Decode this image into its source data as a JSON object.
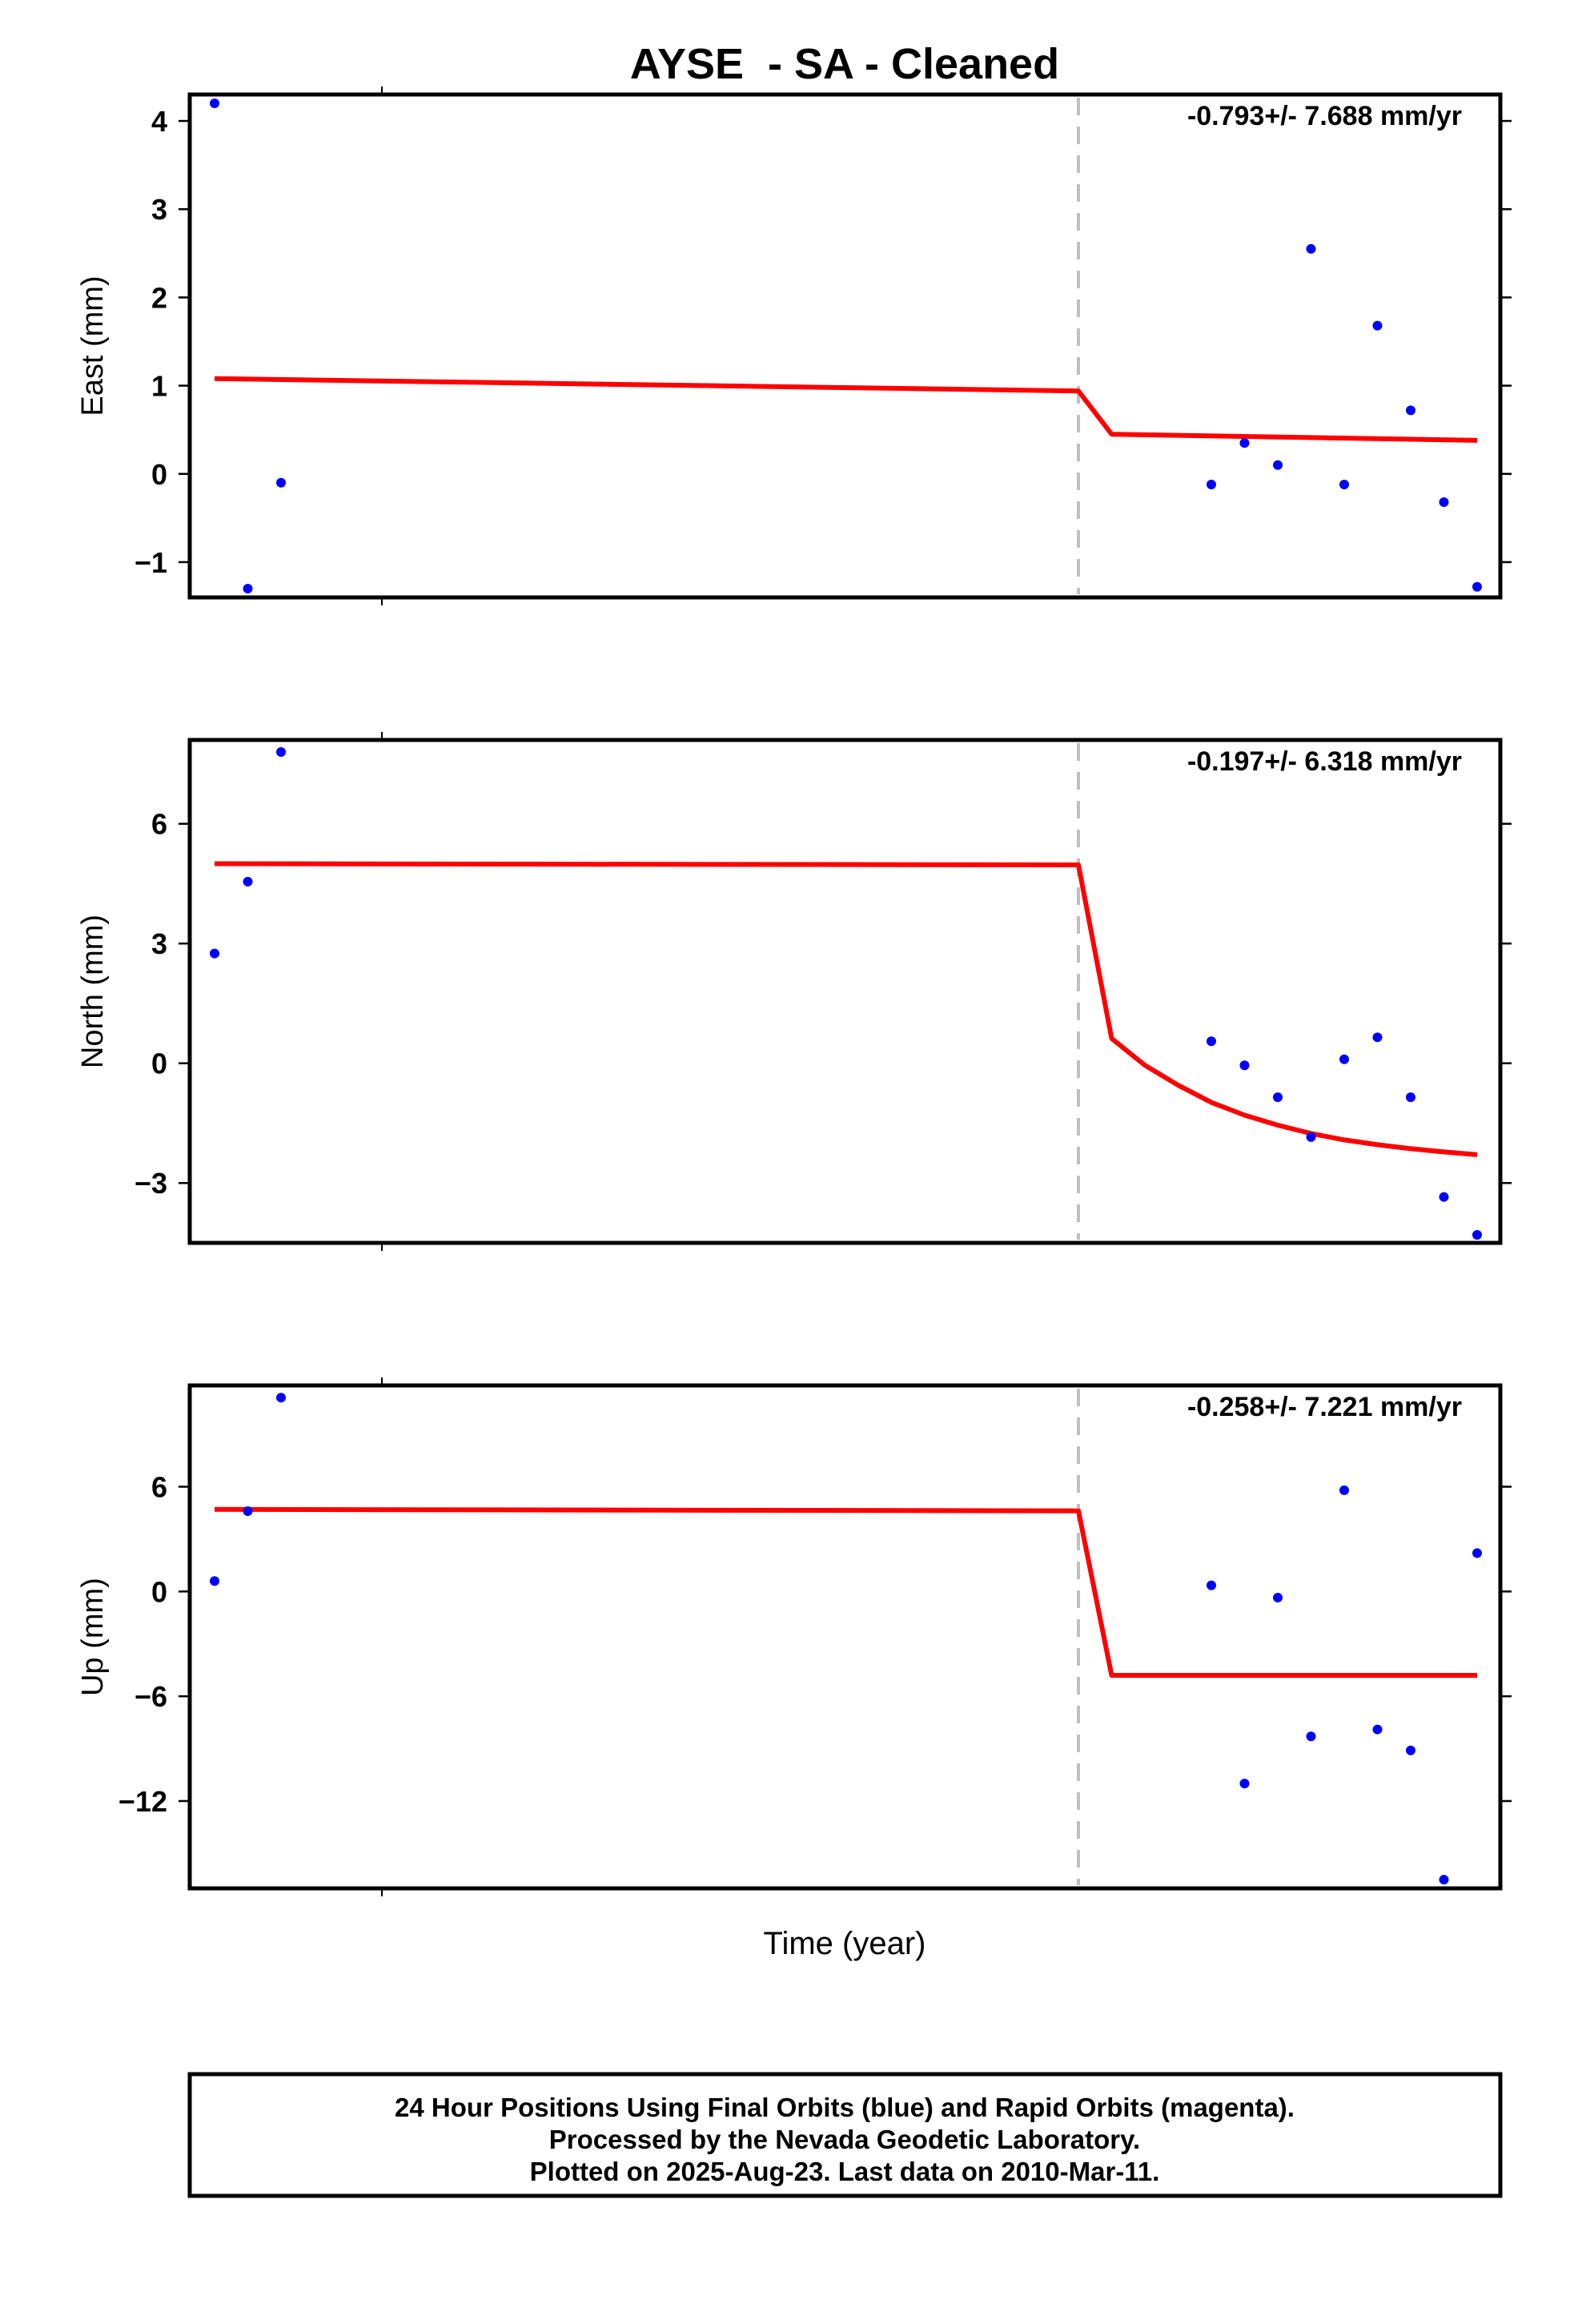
{
  "title": "AYSE  - SA - Cleaned",
  "xlabel": "Time (year)",
  "footer": {
    "line1": "24 Hour Positions Using Final Orbits (blue) and Rapid Orbits (magenta).",
    "line2": "Processed by the Nevada Geodetic Laboratory.",
    "line3": "Plotted on 2025-Aug-23. Last data on 2010-Mar-11."
  },
  "colors": {
    "data": "#0000ff",
    "fit": "#ff0000",
    "event": "#c0c0c0",
    "frame": "#000000"
  },
  "chart_data": [
    {
      "type": "scatter",
      "ylabel": "East (mm)",
      "rate_text": "-0.793+/- 7.688 mm/yr",
      "ylim": [
        -1.4,
        4.3
      ],
      "yticks": [
        4,
        3,
        2,
        1,
        0,
        -1
      ],
      "ytick_labels": [
        "4",
        "3",
        "2",
        "1",
        "0",
        "−1"
      ],
      "event_x": 26,
      "points": {
        "x": [
          0,
          1,
          2,
          30,
          31,
          32,
          33,
          34,
          35,
          36,
          37,
          38
        ],
        "y": [
          4.2,
          -1.3,
          -0.1,
          -0.12,
          0.35,
          0.1,
          2.55,
          -0.12,
          1.68,
          0.72,
          -0.32,
          -1.28
        ]
      },
      "fit": {
        "x": [
          0,
          26,
          27,
          38
        ],
        "y": [
          1.08,
          0.94,
          0.45,
          0.38
        ]
      }
    },
    {
      "type": "scatter",
      "ylabel": "North (mm)",
      "rate_text": "-0.197+/- 6.318 mm/yr",
      "ylim": [
        -4.5,
        8.1
      ],
      "yticks": [
        6,
        3,
        0,
        -3
      ],
      "ytick_labels": [
        "6",
        "3",
        "0",
        "−3"
      ],
      "event_x": 26,
      "points": {
        "x": [
          0,
          1,
          2,
          30,
          31,
          32,
          33,
          34,
          35,
          36,
          37,
          38
        ],
        "y": [
          2.75,
          4.55,
          7.8,
          0.55,
          -0.05,
          -0.85,
          -1.85,
          0.1,
          0.65,
          -0.85,
          -3.35,
          -4.3
        ]
      },
      "fit": {
        "x": [
          0,
          26,
          27,
          28,
          29,
          30,
          31,
          32,
          33,
          34,
          35,
          36,
          37,
          38
        ],
        "y": [
          5.0,
          4.97,
          0.62,
          -0.05,
          -0.55,
          -0.98,
          -1.3,
          -1.55,
          -1.76,
          -1.92,
          -2.04,
          -2.14,
          -2.22,
          -2.29
        ]
      }
    },
    {
      "type": "scatter",
      "ylabel": "Up (mm)",
      "rate_text": "-0.258+/- 7.221 mm/yr",
      "ylim": [
        -17,
        11.8
      ],
      "yticks": [
        6,
        0,
        -6,
        -12
      ],
      "ytick_labels": [
        "6",
        "0",
        "−6",
        "−12"
      ],
      "event_x": 26,
      "points": {
        "x": [
          0,
          1,
          2,
          30,
          31,
          32,
          33,
          34,
          35,
          36,
          37,
          38
        ],
        "y": [
          0.6,
          4.6,
          11.1,
          0.35,
          -11.0,
          -0.35,
          -8.3,
          5.8,
          -7.9,
          -9.1,
          -16.5,
          2.2
        ]
      },
      "fit": {
        "x": [
          0,
          26,
          27,
          38
        ],
        "y": [
          4.7,
          4.62,
          -4.8,
          -4.8
        ]
      }
    }
  ]
}
